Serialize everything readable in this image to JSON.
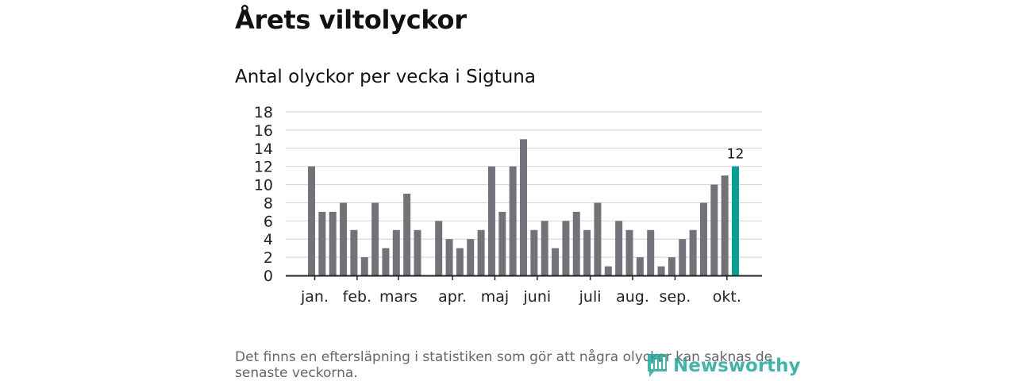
{
  "title": "Årets viltolyckor",
  "chart_data": {
    "type": "bar",
    "title": "Antal olyckor per vecka i Sigtuna",
    "xlabel": "",
    "ylabel": "",
    "ylim": [
      0,
      18
    ],
    "yticks": [
      0,
      2,
      4,
      6,
      8,
      10,
      12,
      14,
      16,
      18
    ],
    "weeks": [
      1,
      2,
      3,
      4,
      5,
      6,
      7,
      8,
      9,
      10,
      11,
      12,
      13,
      14,
      15,
      16,
      17,
      18,
      19,
      20,
      21,
      22,
      23,
      24,
      25,
      26,
      27,
      28,
      29,
      30,
      31,
      32,
      33,
      34,
      35,
      36,
      37,
      38,
      39,
      40,
      41
    ],
    "values": [
      12,
      7,
      7,
      8,
      5,
      2,
      8,
      3,
      5,
      9,
      5,
      null,
      6,
      4,
      3,
      4,
      5,
      12,
      7,
      12,
      15,
      5,
      6,
      3,
      6,
      7,
      5,
      8,
      1,
      6,
      5,
      2,
      5,
      1,
      2,
      4,
      5,
      8,
      10,
      11,
      12
    ],
    "month_labels": [
      {
        "label": "jan.",
        "at_week": 1.3
      },
      {
        "label": "feb.",
        "at_week": 5.3
      },
      {
        "label": "mars",
        "at_week": 9.2
      },
      {
        "label": "apr.",
        "at_week": 14.3
      },
      {
        "label": "maj",
        "at_week": 18.3
      },
      {
        "label": "juni",
        "at_week": 22.3
      },
      {
        "label": "juli",
        "at_week": 27.3
      },
      {
        "label": "aug.",
        "at_week": 31.3
      },
      {
        "label": "sep.",
        "at_week": 35.3
      },
      {
        "label": "okt.",
        "at_week": 40.2
      }
    ],
    "highlight_label": "12",
    "colors": {
      "bar": "#737278",
      "highlight": "#06a194",
      "grid": "#d9d9d9",
      "axis": "#222222"
    }
  },
  "footnote": "Det finns en eftersläpning i statistiken som gör att några olyckor kan saknas de senaste veckorna.",
  "logo": {
    "text": "Newsworthy",
    "color": "#26a69a"
  }
}
